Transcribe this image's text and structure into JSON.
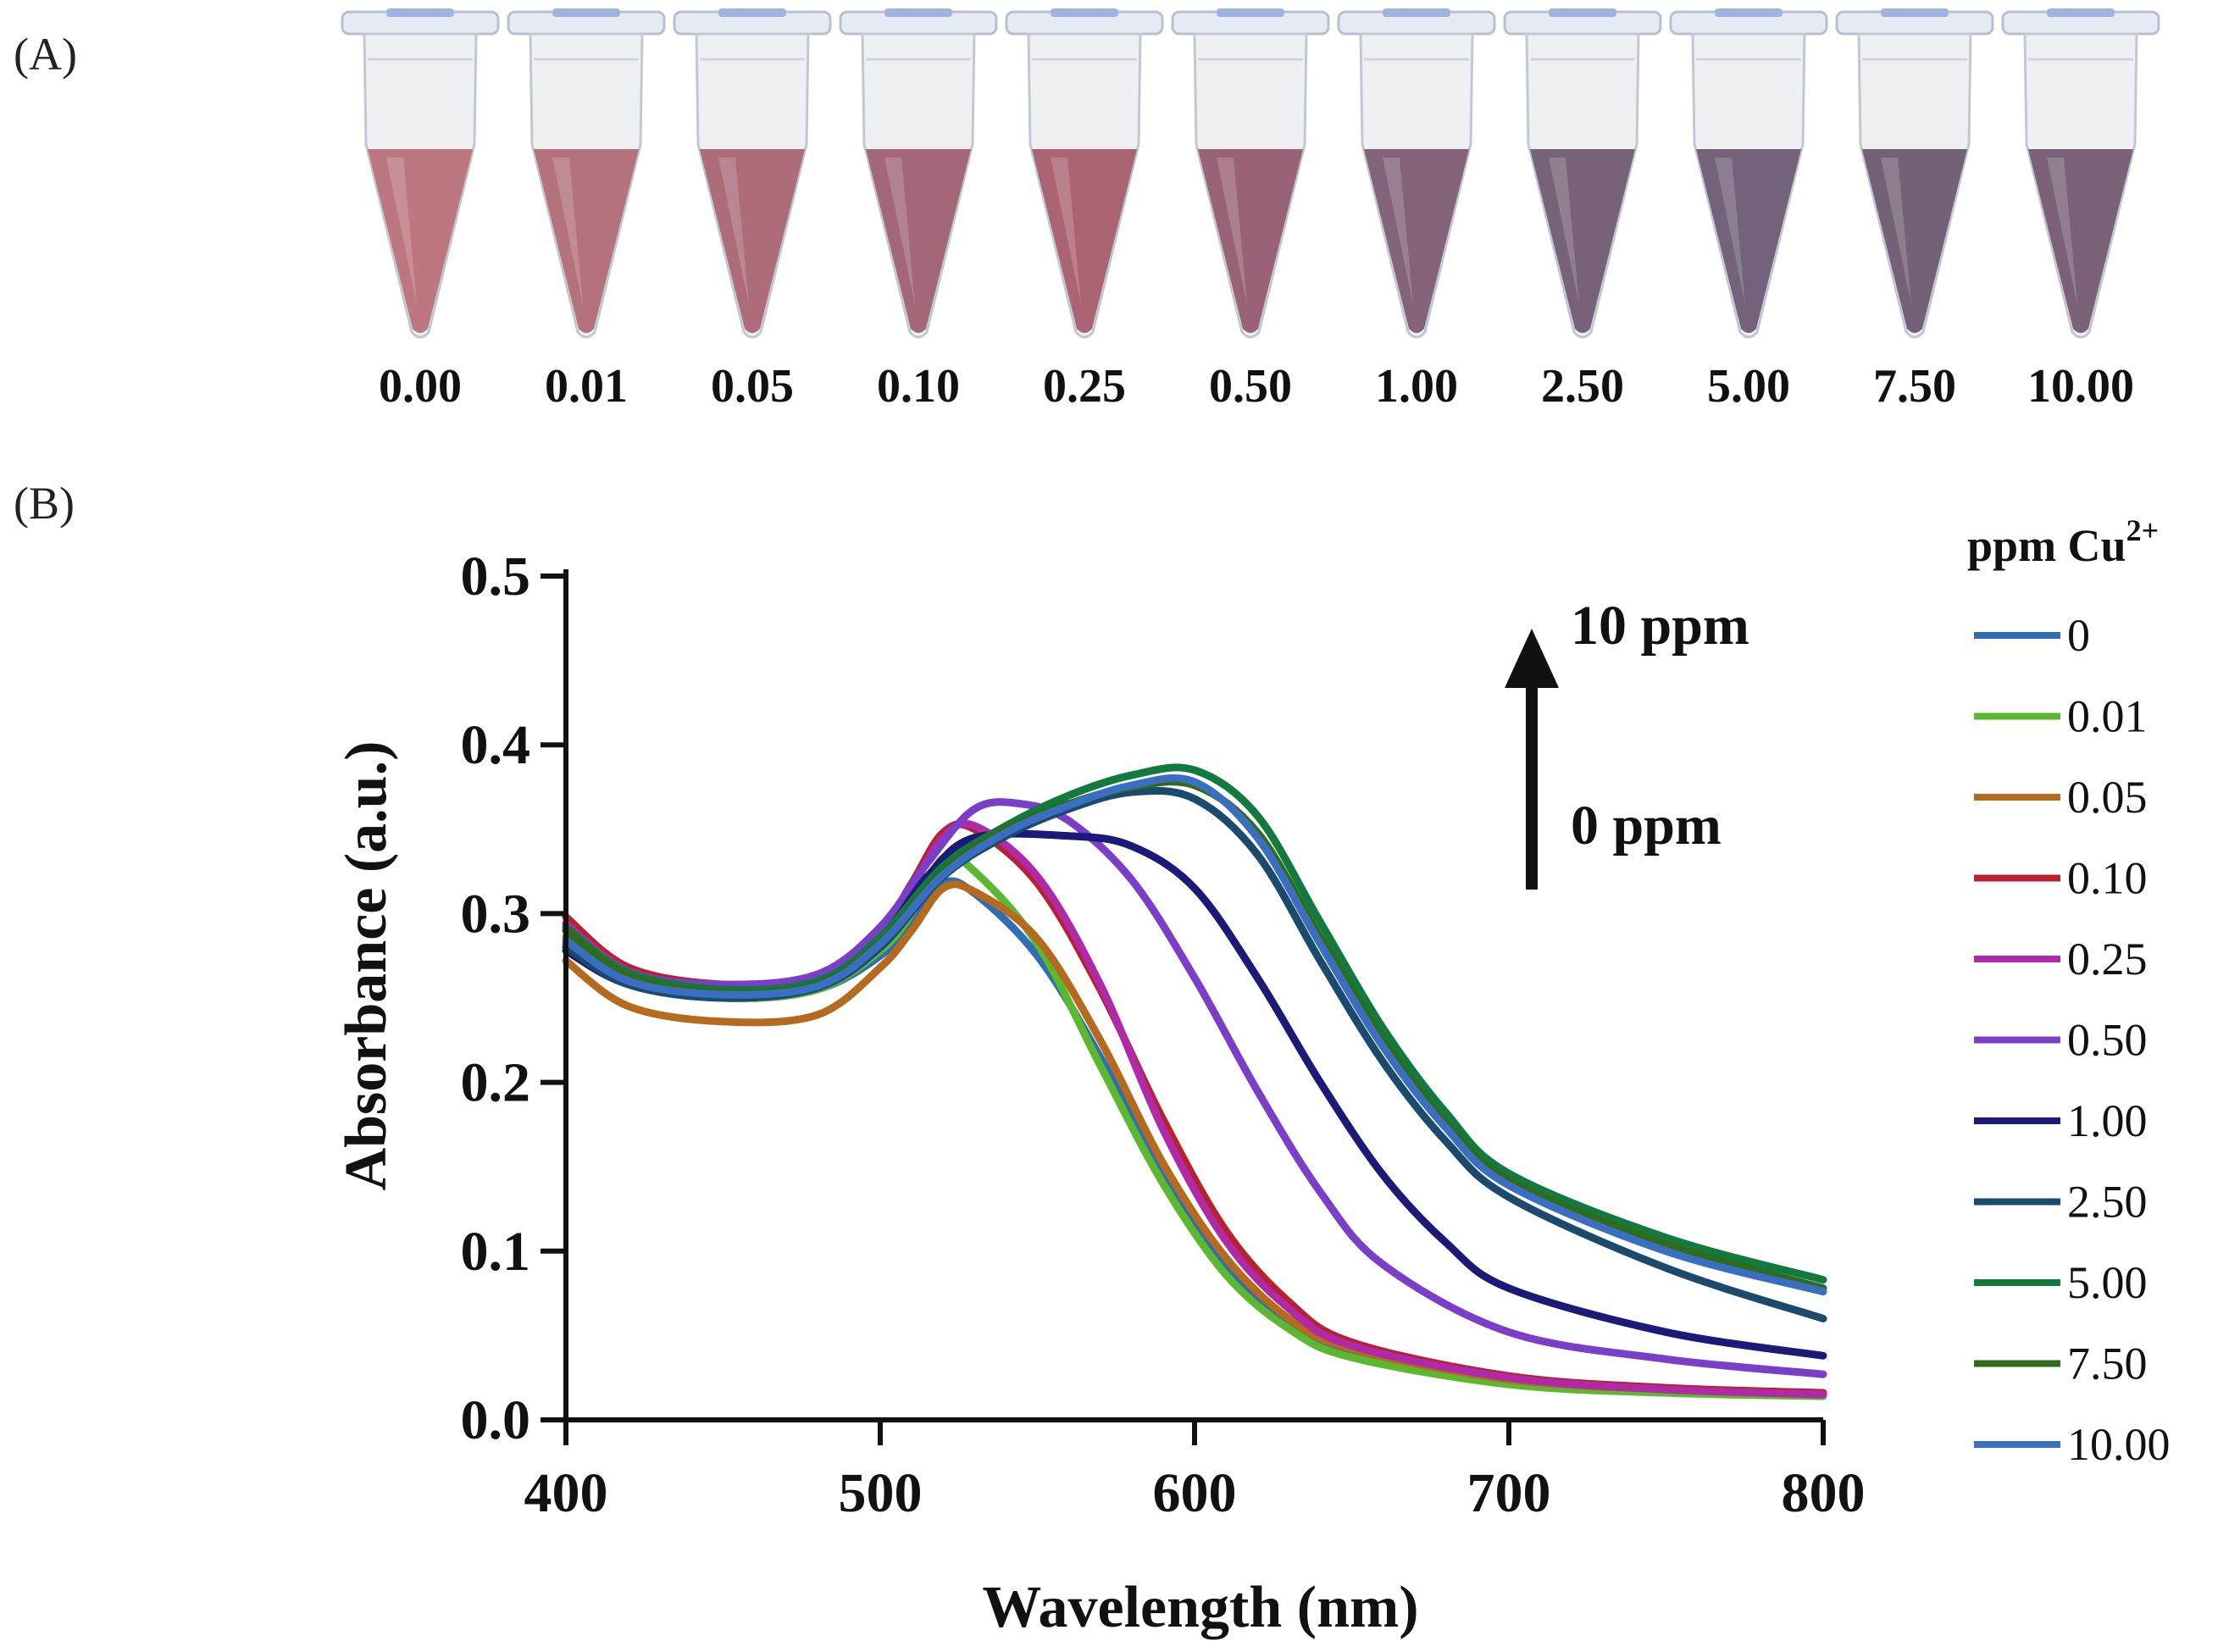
{
  "panels": {
    "a_label": "(A)",
    "b_label": "(B)"
  },
  "tubes": [
    {
      "label": "0.00",
      "liquid": "#b8707a"
    },
    {
      "label": "0.01",
      "liquid": "#b06a75"
    },
    {
      "label": "0.05",
      "liquid": "#a86472"
    },
    {
      "label": "0.10",
      "liquid": "#9e5f70"
    },
    {
      "label": "0.25",
      "liquid": "#a65c6a"
    },
    {
      "label": "0.50",
      "liquid": "#955a70"
    },
    {
      "label": "1.00",
      "liquid": "#7d5a72"
    },
    {
      "label": "2.50",
      "liquid": "#715a72"
    },
    {
      "label": "5.00",
      "liquid": "#6c5a72"
    },
    {
      "label": "7.50",
      "liquid": "#6e5870"
    },
    {
      "label": "10.00",
      "liquid": "#745a72"
    }
  ],
  "chart_data": {
    "type": "line",
    "xlabel": "Wavelength (nm)",
    "ylabel": "Absorbance (a.u.)",
    "xlim": [
      400,
      800
    ],
    "ylim": [
      0.0,
      0.5
    ],
    "xticks": [
      "400",
      "500",
      "600",
      "700",
      "800"
    ],
    "yticks": [
      "0.0",
      "0.1",
      "0.2",
      "0.3",
      "0.4",
      "0.5"
    ],
    "annotation_top": "10 ppm",
    "annotation_bottom": "0 ppm",
    "legend_title": "ppm Cu",
    "legend_title_sup": "2+",
    "legend_position": "right",
    "series": [
      {
        "name": "0",
        "color": "#2f6db5",
        "points": [
          [
            400,
            0.282
          ],
          [
            420,
            0.258
          ],
          [
            450,
            0.25
          ],
          [
            480,
            0.255
          ],
          [
            500,
            0.275
          ],
          [
            510,
            0.295
          ],
          [
            520,
            0.318
          ],
          [
            530,
            0.312
          ],
          [
            550,
            0.275
          ],
          [
            570,
            0.215
          ],
          [
            590,
            0.145
          ],
          [
            610,
            0.09
          ],
          [
            630,
            0.058
          ],
          [
            650,
            0.04
          ],
          [
            700,
            0.023
          ],
          [
            750,
            0.018
          ],
          [
            800,
            0.016
          ]
        ]
      },
      {
        "name": "0.01",
        "color": "#5cb82e",
        "points": [
          [
            400,
            0.286
          ],
          [
            420,
            0.26
          ],
          [
            450,
            0.25
          ],
          [
            480,
            0.255
          ],
          [
            500,
            0.278
          ],
          [
            510,
            0.3
          ],
          [
            520,
            0.333
          ],
          [
            530,
            0.325
          ],
          [
            550,
            0.282
          ],
          [
            570,
            0.21
          ],
          [
            590,
            0.14
          ],
          [
            610,
            0.086
          ],
          [
            630,
            0.054
          ],
          [
            650,
            0.037
          ],
          [
            700,
            0.021
          ],
          [
            750,
            0.016
          ],
          [
            800,
            0.014
          ]
        ]
      },
      {
        "name": "0.05",
        "color": "#b56a1e",
        "points": [
          [
            400,
            0.272
          ],
          [
            420,
            0.245
          ],
          [
            450,
            0.236
          ],
          [
            480,
            0.24
          ],
          [
            500,
            0.268
          ],
          [
            510,
            0.29
          ],
          [
            520,
            0.315
          ],
          [
            530,
            0.313
          ],
          [
            550,
            0.285
          ],
          [
            570,
            0.225
          ],
          [
            590,
            0.152
          ],
          [
            610,
            0.096
          ],
          [
            630,
            0.06
          ],
          [
            650,
            0.042
          ],
          [
            700,
            0.024
          ],
          [
            750,
            0.018
          ],
          [
            800,
            0.015
          ]
        ]
      },
      {
        "name": "0.10",
        "color": "#b8222e",
        "points": [
          [
            400,
            0.298
          ],
          [
            420,
            0.268
          ],
          [
            450,
            0.258
          ],
          [
            480,
            0.262
          ],
          [
            500,
            0.29
          ],
          [
            510,
            0.318
          ],
          [
            520,
            0.348
          ],
          [
            530,
            0.35
          ],
          [
            550,
            0.318
          ],
          [
            570,
            0.255
          ],
          [
            590,
            0.178
          ],
          [
            610,
            0.112
          ],
          [
            630,
            0.07
          ],
          [
            650,
            0.046
          ],
          [
            700,
            0.026
          ],
          [
            750,
            0.019
          ],
          [
            800,
            0.016
          ]
        ]
      },
      {
        "name": "0.25",
        "color": "#b02aa8",
        "points": [
          [
            400,
            0.294
          ],
          [
            420,
            0.266
          ],
          [
            450,
            0.256
          ],
          [
            480,
            0.26
          ],
          [
            500,
            0.288
          ],
          [
            510,
            0.315
          ],
          [
            520,
            0.345
          ],
          [
            530,
            0.352
          ],
          [
            550,
            0.322
          ],
          [
            570,
            0.258
          ],
          [
            590,
            0.172
          ],
          [
            610,
            0.106
          ],
          [
            630,
            0.066
          ],
          [
            650,
            0.044
          ],
          [
            700,
            0.025
          ],
          [
            750,
            0.018
          ],
          [
            800,
            0.015
          ]
        ]
      },
      {
        "name": "0.50",
        "color": "#7a3ec8",
        "points": [
          [
            400,
            0.29
          ],
          [
            420,
            0.265
          ],
          [
            450,
            0.258
          ],
          [
            480,
            0.264
          ],
          [
            500,
            0.292
          ],
          [
            515,
            0.33
          ],
          [
            530,
            0.362
          ],
          [
            545,
            0.365
          ],
          [
            560,
            0.355
          ],
          [
            580,
            0.32
          ],
          [
            600,
            0.262
          ],
          [
            620,
            0.195
          ],
          [
            640,
            0.135
          ],
          [
            660,
            0.092
          ],
          [
            700,
            0.052
          ],
          [
            750,
            0.036
          ],
          [
            800,
            0.027
          ]
        ]
      },
      {
        "name": "1.00",
        "color": "#1c1a78",
        "points": [
          [
            400,
            0.278
          ],
          [
            420,
            0.258
          ],
          [
            450,
            0.252
          ],
          [
            480,
            0.258
          ],
          [
            500,
            0.285
          ],
          [
            515,
            0.322
          ],
          [
            530,
            0.345
          ],
          [
            560,
            0.346
          ],
          [
            580,
            0.34
          ],
          [
            600,
            0.315
          ],
          [
            620,
            0.262
          ],
          [
            640,
            0.2
          ],
          [
            660,
            0.145
          ],
          [
            680,
            0.105
          ],
          [
            700,
            0.078
          ],
          [
            750,
            0.052
          ],
          [
            800,
            0.038
          ]
        ]
      },
      {
        "name": "2.50",
        "color": "#1a4a6e",
        "points": [
          [
            400,
            0.28
          ],
          [
            420,
            0.258
          ],
          [
            450,
            0.25
          ],
          [
            480,
            0.256
          ],
          [
            500,
            0.28
          ],
          [
            520,
            0.322
          ],
          [
            540,
            0.346
          ],
          [
            560,
            0.362
          ],
          [
            580,
            0.372
          ],
          [
            600,
            0.368
          ],
          [
            620,
            0.335
          ],
          [
            640,
            0.272
          ],
          [
            660,
            0.212
          ],
          [
            680,
            0.165
          ],
          [
            700,
            0.132
          ],
          [
            750,
            0.09
          ],
          [
            800,
            0.06
          ]
        ]
      },
      {
        "name": "5.00",
        "color": "#127a3e",
        "points": [
          [
            400,
            0.292
          ],
          [
            420,
            0.265
          ],
          [
            450,
            0.255
          ],
          [
            480,
            0.26
          ],
          [
            500,
            0.286
          ],
          [
            520,
            0.328
          ],
          [
            540,
            0.352
          ],
          [
            560,
            0.37
          ],
          [
            580,
            0.382
          ],
          [
            600,
            0.385
          ],
          [
            620,
            0.358
          ],
          [
            640,
            0.295
          ],
          [
            660,
            0.232
          ],
          [
            680,
            0.182
          ],
          [
            700,
            0.146
          ],
          [
            750,
            0.108
          ],
          [
            800,
            0.083
          ]
        ]
      },
      {
        "name": "7.50",
        "color": "#2f6b18",
        "points": [
          [
            400,
            0.29
          ],
          [
            420,
            0.263
          ],
          [
            450,
            0.253
          ],
          [
            480,
            0.258
          ],
          [
            500,
            0.283
          ],
          [
            520,
            0.325
          ],
          [
            540,
            0.35
          ],
          [
            560,
            0.365
          ],
          [
            580,
            0.375
          ],
          [
            600,
            0.376
          ],
          [
            620,
            0.348
          ],
          [
            640,
            0.286
          ],
          [
            660,
            0.225
          ],
          [
            680,
            0.176
          ],
          [
            700,
            0.142
          ],
          [
            750,
            0.104
          ],
          [
            800,
            0.078
          ]
        ]
      },
      {
        "name": "10.00",
        "color": "#3a6ec0",
        "points": [
          [
            400,
            0.284
          ],
          [
            420,
            0.26
          ],
          [
            450,
            0.252
          ],
          [
            480,
            0.257
          ],
          [
            500,
            0.282
          ],
          [
            520,
            0.323
          ],
          [
            540,
            0.348
          ],
          [
            560,
            0.364
          ],
          [
            580,
            0.376
          ],
          [
            600,
            0.378
          ],
          [
            620,
            0.345
          ],
          [
            640,
            0.282
          ],
          [
            660,
            0.221
          ],
          [
            680,
            0.173
          ],
          [
            700,
            0.139
          ],
          [
            750,
            0.1
          ],
          [
            800,
            0.076
          ]
        ]
      }
    ]
  }
}
